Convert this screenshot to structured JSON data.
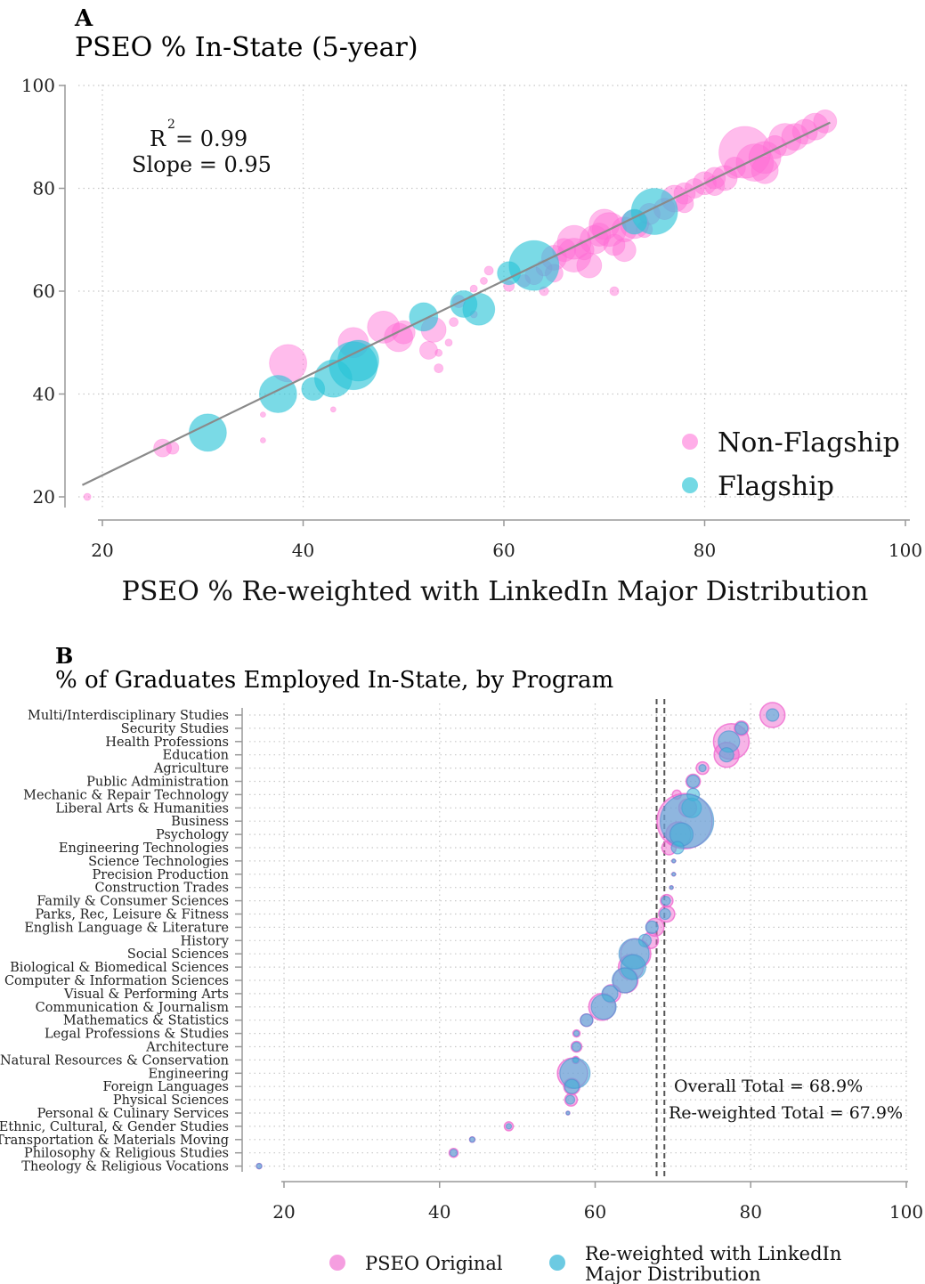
{
  "colors": {
    "non_flagship": "#ff6ad5",
    "flagship": "#29c4d6",
    "pseo_original": "#f06ad0",
    "reweighted": "#3bb8d8",
    "fit_line": "#8a8a8a",
    "total_line": "#555555"
  },
  "chart_data": [
    {
      "type": "scatter",
      "panel": "A",
      "title": "PSEO % In-State (5-year)",
      "xlabel": "PSEO % Re-weighted with LinkedIn Major Distribution",
      "ylabel": "",
      "xlim": [
        18,
        100
      ],
      "ylim": [
        18,
        100
      ],
      "xticks": [
        20,
        40,
        60,
        80,
        100
      ],
      "yticks": [
        20,
        40,
        60,
        80,
        100
      ],
      "grid": true,
      "annotation": {
        "r2_label": "R",
        "r2_sup": "2",
        "r2_value": "= 0.99",
        "slope": "Slope = 0.95"
      },
      "fit_line": {
        "x": [
          18,
          92.5
        ],
        "y": [
          22.3,
          92.8
        ]
      },
      "legend": {
        "position": "bottom-right",
        "entries": [
          "Non-Flagship",
          "Flagship"
        ]
      },
      "series": [
        {
          "name": "Non-Flagship",
          "x": [
            18.5,
            26,
            27,
            36,
            36,
            38.5,
            43,
            45,
            48,
            49.5,
            50,
            53,
            53.5,
            52.5,
            53.5,
            54.5,
            55,
            55.5,
            57,
            58,
            58.5,
            62,
            63,
            64,
            65,
            66,
            67,
            68,
            69,
            69.5,
            70,
            70.5,
            71,
            72,
            73,
            74.5,
            76,
            77,
            78,
            79,
            80,
            81,
            82,
            83,
            84,
            85,
            86,
            87,
            88,
            89,
            90,
            91,
            92,
            57,
            71,
            60.5,
            64,
            65,
            68.5,
            74,
            78,
            81,
            86,
            67,
            72
          ],
          "y": [
            20,
            29.5,
            29.5,
            36,
            31,
            46,
            37,
            50,
            53,
            51,
            52,
            52.5,
            45,
            48.5,
            48,
            50,
            54,
            58,
            60.5,
            62,
            64,
            62,
            63,
            64.5,
            66.5,
            68,
            67,
            68,
            70,
            71,
            73,
            72,
            69,
            72,
            73,
            75,
            76,
            78,
            79,
            80,
            81,
            82,
            82,
            84,
            87,
            85,
            86,
            88,
            89.5,
            90,
            91,
            92,
            93,
            55.5,
            60,
            61,
            60,
            63.5,
            65,
            72,
            77,
            80.5,
            83.5,
            69.5,
            68
          ],
          "sizes": [
            4,
            10,
            7,
            3,
            3,
            21,
            3,
            17,
            18,
            16,
            13,
            14,
            5,
            10,
            4,
            4,
            5,
            7,
            4,
            4,
            5,
            7,
            10,
            9,
            14,
            13,
            19,
            11,
            16,
            13,
            17,
            19,
            12,
            14,
            16,
            12,
            12,
            15,
            12,
            11,
            13,
            12,
            14,
            12,
            29,
            21,
            18,
            13,
            18,
            15,
            14,
            15,
            13,
            4,
            5,
            6,
            5,
            10,
            14,
            9,
            10,
            11,
            15,
            19,
            13
          ]
        },
        {
          "name": "Flagship",
          "x": [
            30.5,
            37.5,
            41,
            43,
            45,
            45.5,
            52,
            56,
            57.5,
            60.5,
            63,
            73,
            75
          ],
          "y": [
            32.5,
            40,
            41,
            43,
            45.5,
            46.5,
            55,
            57.5,
            56.5,
            63.5,
            65,
            73.5,
            75.5
          ],
          "sizes": [
            21,
            21,
            13,
            21,
            27,
            23,
            16,
            15,
            18,
            13,
            28,
            14,
            26
          ]
        }
      ]
    },
    {
      "type": "scatter",
      "panel": "B",
      "title": "% of Graduates Employed In-State, by Program",
      "xlim": [
        17,
        100
      ],
      "xticks": [
        20,
        40,
        60,
        80,
        100
      ],
      "grid": true,
      "categories": [
        "Multi/Interdisciplinary Studies",
        "Security Studies",
        "Health Professions",
        "Education",
        "Agriculture",
        "Public Administration",
        "Mechanic & Repair Technology",
        "Liberal Arts & Humanities",
        "Business",
        "Psychology",
        "Engineering Technologies",
        "Science Technologies",
        "Precision Production",
        "Construction Trades",
        "Family & Consumer Sciences",
        "Parks, Rec, Leisure & Fitness",
        "English Language & Literature",
        "History",
        "Social Sciences",
        "Biological & Biomedical Sciences",
        "Computer & Information Sciences",
        "Visual & Performing Arts",
        "Communication & Journalism",
        "Mathematics & Statistics",
        "Legal Professions & Studies",
        "Architecture",
        "Natural Resources & Conservation",
        "Engineering",
        "Foreign Languages",
        "Physical Sciences",
        "Personal & Culinary Services",
        "Ethnic, Cultural, & Gender Studies",
        "Transportation & Materials Moving",
        "Philosophy & Religious Studies",
        "Theology & Religious Vocations"
      ],
      "series": [
        {
          "name": "PSEO Original",
          "values": [
            82.8,
            78.8,
            77.5,
            76.9,
            73.8,
            72.6,
            70.5,
            71.9,
            71.5,
            70.7,
            69.5,
            70.1,
            70.1,
            69.8,
            69.2,
            69.2,
            67.7,
            67.1,
            65.2,
            64.6,
            63.9,
            62.1,
            60.9,
            58.9,
            57.6,
            57.6,
            57.5,
            57.1,
            57.0,
            56.9,
            56.5,
            48.9,
            44.2,
            41.8,
            16.8
          ],
          "sizes": [
            14,
            8,
            20,
            14,
            7,
            8,
            5,
            10,
            31,
            14,
            8,
            2,
            2,
            2,
            7,
            9,
            10,
            9,
            17,
            14,
            14,
            10,
            15,
            7,
            4,
            6,
            4,
            17,
            9,
            7,
            2,
            5,
            3,
            5,
            3
          ]
        },
        {
          "name": "Re-weighted with LinkedIn Major Distribution",
          "values": [
            82.8,
            78.8,
            77.2,
            76.9,
            73.8,
            72.6,
            72.6,
            72.4,
            71.8,
            71.1,
            70.6,
            70.1,
            70.1,
            69.8,
            69.1,
            69.0,
            67.3,
            66.4,
            65.0,
            64.9,
            63.8,
            61.9,
            61.1,
            58.9,
            57.6,
            57.6,
            57.5,
            57.4,
            57.0,
            56.8,
            56.5,
            48.9,
            44.2,
            41.8,
            16.8
          ],
          "sizes": [
            7,
            7,
            12,
            8,
            4,
            7,
            7,
            11,
            30,
            13,
            7,
            2,
            2,
            2,
            5,
            6,
            7,
            7,
            17,
            14,
            14,
            9,
            14,
            7,
            3,
            5,
            3,
            17,
            8,
            5,
            2,
            3,
            3,
            4,
            3
          ]
        }
      ],
      "reference_lines": [
        {
          "x": 68.9,
          "label": "Overall Total = 68.9%"
        },
        {
          "x": 67.9,
          "label": "Re-weighted Total = 67.9%"
        }
      ],
      "legend": {
        "position": "bottom",
        "entries": [
          "PSEO Original",
          "Re-weighted with LinkedIn",
          "Major Distribution"
        ]
      }
    }
  ],
  "panel_letters": [
    "A",
    "B"
  ]
}
